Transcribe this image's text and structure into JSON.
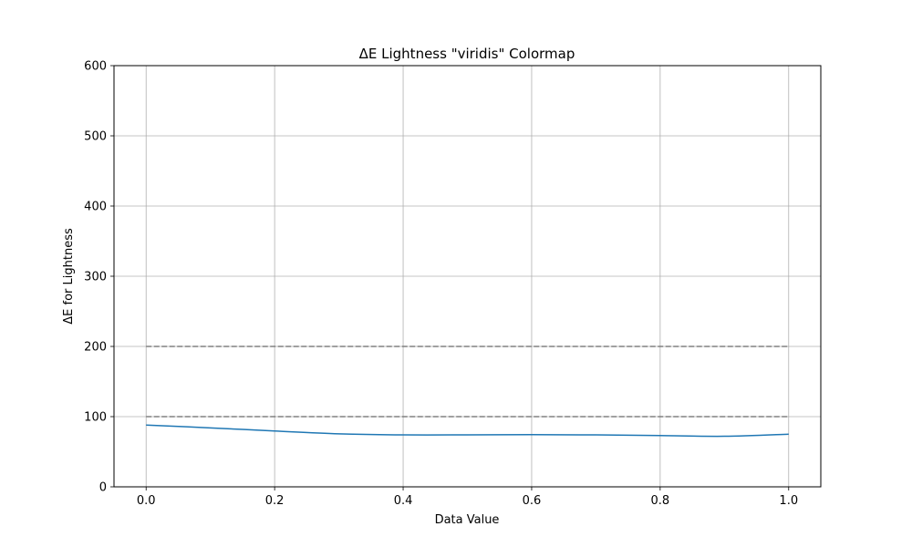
{
  "chart_data": {
    "type": "line",
    "title": "ΔE Lightness \"viridis\" Colormap",
    "xlabel": "Data Value",
    "ylabel": "ΔE for Lightness",
    "xlim": [
      -0.05,
      1.05
    ],
    "ylim": [
      0,
      600
    ],
    "x_ticks": [
      "0.0",
      "0.2",
      "0.4",
      "0.6",
      "0.8",
      "1.0"
    ],
    "x_tick_values": [
      0.0,
      0.2,
      0.4,
      0.6,
      0.8,
      1.0
    ],
    "y_ticks": [
      "0",
      "100",
      "200",
      "300",
      "400",
      "500",
      "600"
    ],
    "y_tick_values": [
      0,
      100,
      200,
      300,
      400,
      500,
      600
    ],
    "grid": true,
    "series": [
      {
        "color": "#1f77b4",
        "style": "solid",
        "x": [
          0.0,
          0.1,
          0.2,
          0.3,
          0.4,
          0.5,
          0.6,
          0.7,
          0.8,
          0.9,
          1.0
        ],
        "y": [
          88,
          84,
          79.5,
          75.5,
          74,
          74,
          74.3,
          74,
          73,
          72,
          75
        ]
      }
    ],
    "reference_lines": [
      {
        "y": 100,
        "x": [
          0.0,
          1.0
        ],
        "color": "#808080",
        "style": "dashed"
      },
      {
        "y": 200,
        "x": [
          0.0,
          1.0
        ],
        "color": "#808080",
        "style": "dashed"
      }
    ]
  }
}
